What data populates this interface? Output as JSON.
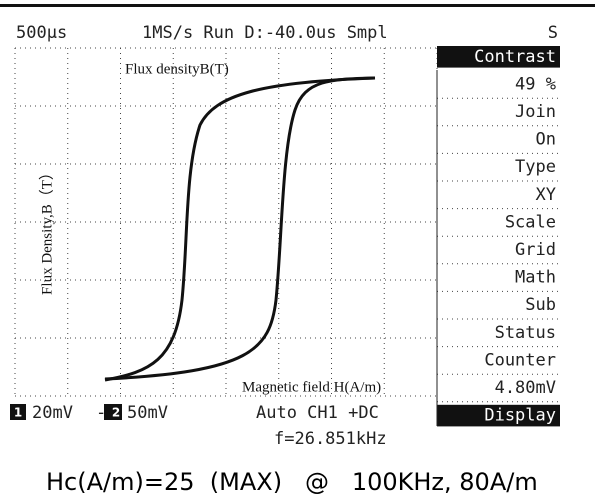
{
  "status_bar": [
    "500μs",
    "1MS/s Run D:-40.0us Smpl",
    "S"
  ],
  "menu": [
    "Contrast",
    "49 %",
    "Join",
    "On",
    "Type",
    "XY",
    "Scale",
    "Grid",
    "Math",
    "Sub",
    "Status",
    "Counter",
    "4.80mV",
    "Display"
  ],
  "annotations": {
    "y_top": "Flux densityB(T)",
    "y_side": "Flux Density,B（T）",
    "x_bottom": "Magnetic field H(A/m)"
  },
  "bottom_bar": {
    "ch1_scale": "20mV",
    "ch2_scale": "-2",
    "ch2_volts": "50mV",
    "trigger": "Auto CH1 +DC",
    "frequency": "f=26.851kHz",
    "ch1_label": "1",
    "ch2_label": "2"
  },
  "footer": "Hc(A/m)=25  (MAX)   @   100KHz, 80A/m"
}
